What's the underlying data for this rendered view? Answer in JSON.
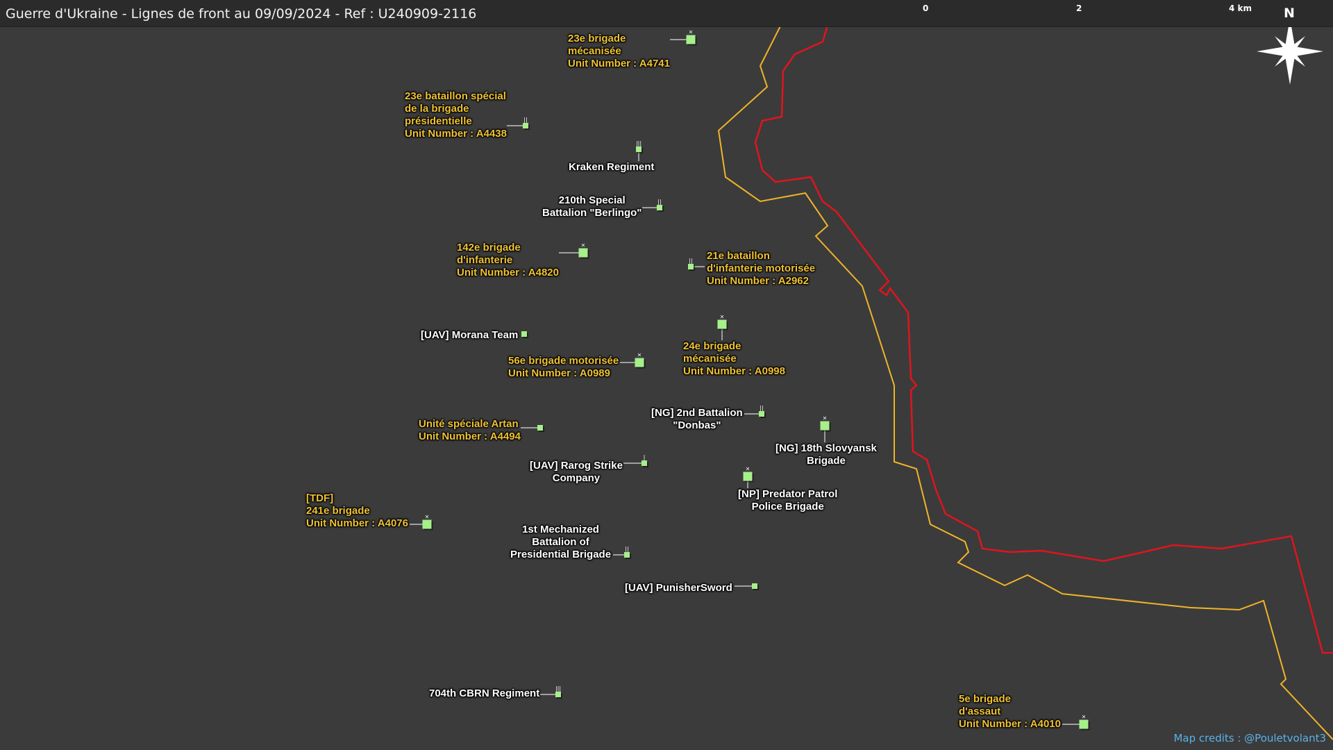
{
  "title": "Guerre d'Ukraine - Lignes de front au 09/09/2024 - Ref : U240909-2116",
  "scale_bar": {
    "labels": [
      "0",
      "2",
      "4 km"
    ]
  },
  "north_arrow": {
    "label": "N"
  },
  "credits": "Map credits : @Pouletvolant3",
  "colors": {
    "background": "#3b3b3b",
    "frontline_red": "#e0141e",
    "frontline_yellow": "#f0b429",
    "unit_symbol": "#a6f08a",
    "ua_label": "#f0c233",
    "other_label": "#ffffff",
    "credits": "#5ab2ea"
  },
  "units": [
    {
      "id": "u1",
      "lines": [
        "23e brigade",
        "mécanisée",
        "Unit Number : A4741"
      ],
      "style": "ua",
      "echelon": "X",
      "symbol": "large"
    },
    {
      "id": "u2",
      "lines": [
        "23e bataillon spécial",
        "de la brigade",
        "présidentielle",
        "Unit Number : A4438"
      ],
      "style": "ua",
      "echelon": "II",
      "symbol": "small"
    },
    {
      "id": "u3",
      "lines": [
        "Kraken Regiment"
      ],
      "style": "other",
      "echelon": "III",
      "symbol": "small"
    },
    {
      "id": "u4",
      "lines": [
        "210th Special",
        "Battalion \"Berlingo\""
      ],
      "style": "other",
      "echelon": "II",
      "symbol": "small"
    },
    {
      "id": "u5",
      "lines": [
        "142e brigade",
        "d'infanterie",
        "Unit Number : A4820"
      ],
      "style": "ua",
      "echelon": "X",
      "symbol": "large"
    },
    {
      "id": "u6",
      "lines": [
        "21e bataillon",
        "d'infanterie motorisée",
        "Unit Number : A2962"
      ],
      "style": "ua",
      "echelon": "II",
      "symbol": "small"
    },
    {
      "id": "u7",
      "lines": [
        "[UAV] Morana Team"
      ],
      "style": "other",
      "echelon": "",
      "symbol": "small"
    },
    {
      "id": "u8",
      "lines": [
        "24e brigade",
        "mécanisée",
        "Unit Number : A0998"
      ],
      "style": "ua",
      "echelon": "X",
      "symbol": "large"
    },
    {
      "id": "u9",
      "lines": [
        "56e brigade motorisée",
        "Unit Number : A0989"
      ],
      "style": "ua",
      "echelon": "X",
      "symbol": "large"
    },
    {
      "id": "u10",
      "lines": [
        "[NG] 2nd Battalion",
        "\"Donbas\""
      ],
      "style": "other",
      "echelon": "II",
      "symbol": "small"
    },
    {
      "id": "u11",
      "lines": [
        "[NG] 18th Slovyansk",
        "Brigade"
      ],
      "style": "other",
      "echelon": "X",
      "symbol": "large"
    },
    {
      "id": "u12",
      "lines": [
        "Unité spéciale Artan",
        "Unit Number : A4494"
      ],
      "style": "ua",
      "echelon": "",
      "symbol": "small"
    },
    {
      "id": "u13",
      "lines": [
        "[UAV] Rarog Strike",
        "Company"
      ],
      "style": "other",
      "echelon": "I",
      "symbol": "small"
    },
    {
      "id": "u14",
      "lines": [
        "[NP] Predator Patrol",
        "Police Brigade"
      ],
      "style": "other",
      "echelon": "X",
      "symbol": "large"
    },
    {
      "id": "u15",
      "lines": [
        "[TDF]",
        "241e brigade",
        "Unit Number : A4076"
      ],
      "style": "ua",
      "echelon": "X",
      "symbol": "large"
    },
    {
      "id": "u16",
      "lines": [
        "1st Mechanized",
        "Battalion of",
        "Presidential Brigade"
      ],
      "style": "other",
      "echelon": "II",
      "symbol": "small"
    },
    {
      "id": "u17",
      "lines": [
        "[UAV] PunisherSword"
      ],
      "style": "other",
      "echelon": "",
      "symbol": "small"
    },
    {
      "id": "u18",
      "lines": [
        "704th CBRN Regiment"
      ],
      "style": "other",
      "echelon": "III",
      "symbol": "small"
    },
    {
      "id": "u19",
      "lines": [
        "5e brigade",
        "d'assaut",
        "Unit Number : A4010"
      ],
      "style": "ua",
      "echelon": "X",
      "symbol": "large"
    }
  ]
}
